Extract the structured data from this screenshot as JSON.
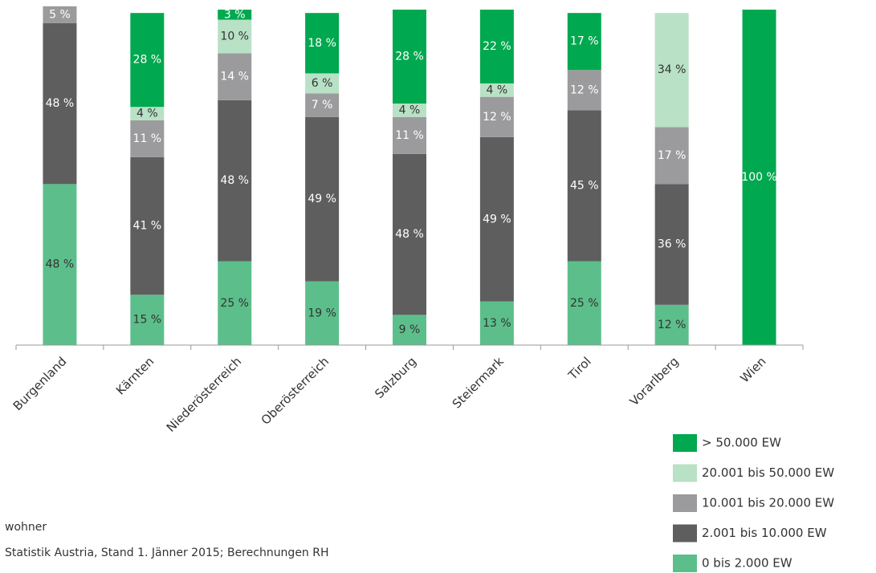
{
  "chart_data": {
    "type": "stacked_bar",
    "categories": [
      "Burgenland",
      "Kärnten",
      "Niederösterreich",
      "Oberösterreich",
      "Salzburg",
      "Steiermark",
      "Tirol",
      "Vorarlberg",
      "Wien"
    ],
    "ylim": [
      0,
      100
    ],
    "series": [
      {
        "name": "0 bis 2.000 EW",
        "color": "#5cbf8b",
        "label_color": "#333333",
        "values": [
          48,
          15,
          25,
          19,
          9,
          13,
          25,
          12,
          0
        ],
        "value_labels": [
          "48 %",
          "15 %",
          "25 %",
          "19 %",
          "9 %",
          "13 %",
          "25 %",
          "12 %",
          null
        ]
      },
      {
        "name": "2.001 bis 10.000 EW",
        "color": "#5e5e5e",
        "label_color": "#ffffff",
        "values": [
          48,
          41,
          48,
          49,
          48,
          49,
          45,
          36,
          0
        ],
        "value_labels": [
          "48 %",
          "41 %",
          "48 %",
          "49 %",
          "48 %",
          "49 %",
          "45 %",
          "36 %",
          null
        ]
      },
      {
        "name": "10.001 bis 20.000 EW",
        "color": "#9b9b9d",
        "label_color": "#ffffff",
        "values": [
          5,
          11,
          14,
          7,
          11,
          12,
          12,
          17,
          0
        ],
        "value_labels": [
          "5 %",
          "11 %",
          "14 %",
          "7 %",
          "11 %",
          "12 %",
          "12 %",
          "17 %",
          null
        ]
      },
      {
        "name": "20.001 bis 50.000 EW",
        "color": "#b8e1c6",
        "label_color": "#333333",
        "values": [
          0,
          4,
          10,
          6,
          4,
          4,
          0,
          34,
          0
        ],
        "value_labels": [
          null,
          "4 %",
          "10 %",
          "6 %",
          "4 %",
          "4 %",
          null,
          "34 %",
          null
        ]
      },
      {
        "name": "> 50.000 EW",
        "color": "#00a84f",
        "label_color": "#ffffff",
        "values": [
          0,
          28,
          3,
          18,
          28,
          22,
          17,
          0,
          100
        ],
        "value_labels": [
          null,
          "28 %",
          "3 %",
          "18 %",
          "28 %",
          "22 %",
          "17 %",
          null,
          "100 %"
        ]
      }
    ],
    "legend": "bottom-right",
    "notes": [
      "wohner",
      "Statistik Austria, Stand 1. Jänner 2015; Berechnungen RH"
    ]
  }
}
